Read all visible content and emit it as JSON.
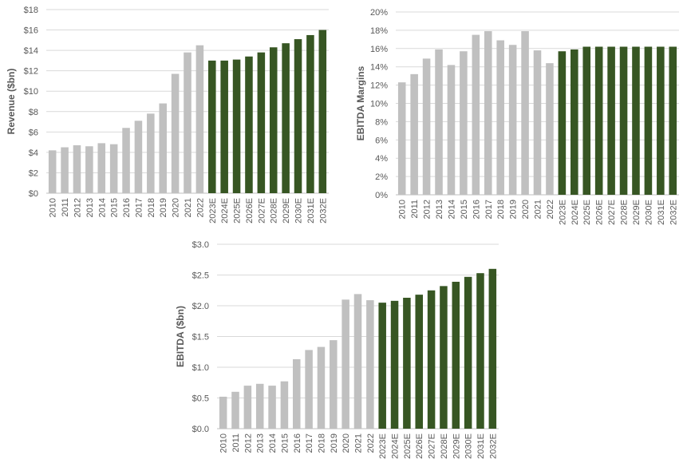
{
  "colors": {
    "historical": "#c0c0c0",
    "estimate": "#375623",
    "grid": "#d9d9d9",
    "text": "#595959"
  },
  "chart_data": [
    {
      "type": "bar",
      "ylabel": "Revenue ($bn)",
      "ylim": [
        0,
        18
      ],
      "yticks": [
        0,
        2,
        4,
        6,
        8,
        10,
        12,
        14,
        16,
        18
      ],
      "ytick_labels": [
        "$0",
        "$2",
        "$4",
        "$6",
        "$8",
        "$10",
        "$12",
        "$14",
        "$16",
        "$18"
      ],
      "grid": true,
      "categories": [
        "2010",
        "2011",
        "2012",
        "2013",
        "2014",
        "2015",
        "2016",
        "2017",
        "2018",
        "2019",
        "2020",
        "2021",
        "2022",
        "2023E",
        "2024E",
        "2025E",
        "2026E",
        "2027E",
        "2028E",
        "2029E",
        "2030E",
        "2031E",
        "2032E"
      ],
      "values": [
        4.2,
        4.5,
        4.7,
        4.6,
        4.9,
        4.8,
        6.4,
        7.1,
        7.8,
        8.8,
        11.7,
        13.8,
        14.5,
        13.0,
        13.0,
        13.1,
        13.4,
        13.8,
        14.3,
        14.7,
        15.1,
        15.5,
        16.0
      ]
    },
    {
      "type": "bar",
      "ylabel": "EBITDA Margins",
      "ylim": [
        0,
        20
      ],
      "yticks": [
        0,
        2,
        4,
        6,
        8,
        10,
        12,
        14,
        16,
        18,
        20
      ],
      "ytick_labels": [
        "0%",
        "2%",
        "4%",
        "6%",
        "8%",
        "10%",
        "12%",
        "14%",
        "16%",
        "18%",
        "20%"
      ],
      "grid": true,
      "categories": [
        "2010",
        "2011",
        "2012",
        "2013",
        "2014",
        "2015",
        "2016",
        "2017",
        "2018",
        "2019",
        "2020",
        "2021",
        "2022",
        "2023E",
        "2024E",
        "2025E",
        "2026E",
        "2027E",
        "2028E",
        "2029E",
        "2030E",
        "2031E",
        "2032E"
      ],
      "values": [
        12.3,
        13.2,
        14.9,
        15.9,
        14.2,
        15.7,
        17.5,
        17.9,
        16.9,
        16.4,
        17.9,
        15.8,
        14.4,
        15.7,
        15.9,
        16.2,
        16.2,
        16.2,
        16.2,
        16.2,
        16.2,
        16.2,
        16.2
      ]
    },
    {
      "type": "bar",
      "ylabel": "EBITDA ($bn)",
      "ylim": [
        0,
        3.0
      ],
      "yticks": [
        0,
        0.5,
        1.0,
        1.5,
        2.0,
        2.5,
        3.0
      ],
      "ytick_labels": [
        "$0.0",
        "$0.5",
        "$1.0",
        "$1.5",
        "$2.0",
        "$2.5",
        "$3.0"
      ],
      "grid": true,
      "categories": [
        "2010",
        "2011",
        "2012",
        "2013",
        "2014",
        "2015",
        "2016",
        "2017",
        "2018",
        "2019",
        "2020",
        "2021",
        "2022",
        "2023E",
        "2024E",
        "2025E",
        "2026E",
        "2027E",
        "2028E",
        "2029E",
        "2030E",
        "2031E",
        "2032E"
      ],
      "values": [
        0.52,
        0.6,
        0.7,
        0.73,
        0.7,
        0.77,
        1.13,
        1.28,
        1.33,
        1.44,
        2.1,
        2.19,
        2.09,
        2.05,
        2.08,
        2.13,
        2.18,
        2.25,
        2.32,
        2.39,
        2.47,
        2.53,
        2.6
      ]
    }
  ]
}
